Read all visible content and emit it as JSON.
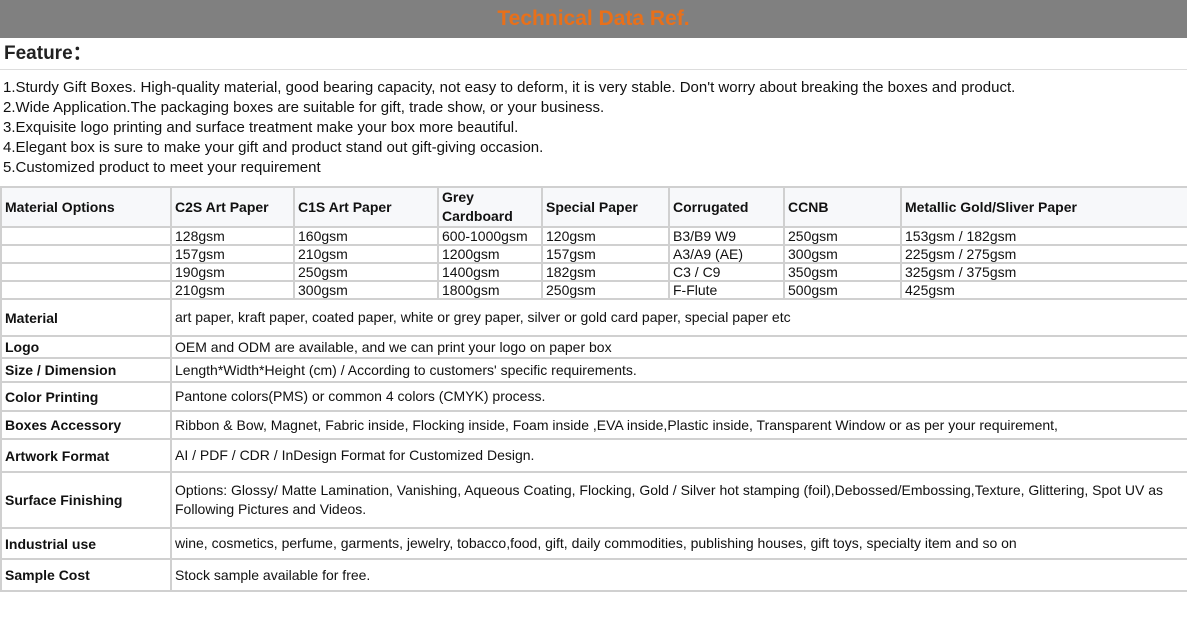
{
  "title": "Technical Data Ref.",
  "feature_heading": "Feature：",
  "features": [
    "1.Sturdy Gift Boxes. High-quality material, good bearing capacity, not easy to deform, it is very stable. Don't worry about breaking the boxes and product.",
    "2.Wide Application.The packaging boxes are suitable for gift, trade show, or your business.",
    "3.Exquisite logo printing and surface treatment make your box more beautiful.",
    "4.Elegant box is sure to make your gift and product stand out gift-giving occasion.",
    "5.Customized product to meet your requirement"
  ],
  "material_options": {
    "headers": [
      "Material Options",
      "C2S Art Paper",
      "C1S Art Paper",
      "Grey Cardboard",
      "Special Paper",
      "Corrugated",
      "CCNB",
      "Metallic Gold/Sliver Paper"
    ],
    "rows": [
      [
        "",
        "128gsm",
        "160gsm",
        "600-1000gsm",
        "120gsm",
        "B3/B9 W9",
        "250gsm",
        "153gsm / 182gsm"
      ],
      [
        "",
        "157gsm",
        "210gsm",
        "1200gsm",
        "157gsm",
        "A3/A9 (AE)",
        "300gsm",
        "225gsm / 275gsm"
      ],
      [
        "",
        "190gsm",
        "250gsm",
        "1400gsm",
        "182gsm",
        "C3 / C9",
        "350gsm",
        "325gsm / 375gsm"
      ],
      [
        "",
        "210gsm",
        "300gsm",
        "1800gsm",
        "250gsm",
        "F-Flute",
        "500gsm",
        "425gsm"
      ]
    ]
  },
  "specs": [
    {
      "label": "Material",
      "value": "art paper, kraft paper, coated paper, white or grey paper, silver or gold card paper, special paper etc"
    },
    {
      "label": "Logo",
      "value": "OEM and ODM are available, and we can print your logo on paper box"
    },
    {
      "label": "Size / Dimension",
      "value": "Length*Width*Height (cm) / According to customers' specific requirements."
    },
    {
      "label": "Color Printing",
      "value": "Pantone colors(PMS) or common 4 colors (CMYK) process."
    },
    {
      "label": "Boxes Accessory",
      "value": "Ribbon & Bow, Magnet, Fabric inside, Flocking inside, Foam inside ,EVA inside,Plastic inside, Transparent Window or as per your requirement,"
    },
    {
      "label": "Artwork Format",
      "value": "AI / PDF / CDR / InDesign Format for Customized Design."
    },
    {
      "label": "Surface Finishing",
      "value": "Options: Glossy/ Matte Lamination, Vanishing, Aqueous Coating, Flocking, Gold / Silver hot stamping (foil),Debossed/Embossing,Texture, Glittering, Spot UV as Following Pictures and Videos."
    },
    {
      "label": "Industrial use",
      "value": "wine, cosmetics, perfume, garments, jewelry, tobacco,food, gift, daily commodities, publishing houses, gift toys, specialty item and so on"
    },
    {
      "label": "Sample Cost",
      "value": "Stock sample available for free."
    }
  ],
  "colors": {
    "title_bg": "#808080",
    "title_text": "#e8701a",
    "border": "#d0d0d0"
  }
}
